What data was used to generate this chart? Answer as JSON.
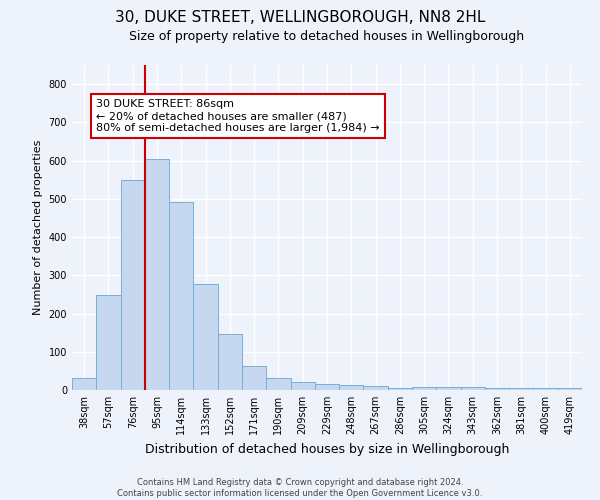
{
  "title": "30, DUKE STREET, WELLINGBOROUGH, NN8 2HL",
  "subtitle": "Size of property relative to detached houses in Wellingborough",
  "xlabel": "Distribution of detached houses by size in Wellingborough",
  "ylabel": "Number of detached properties",
  "categories": [
    "38sqm",
    "57sqm",
    "76sqm",
    "95sqm",
    "114sqm",
    "133sqm",
    "152sqm",
    "171sqm",
    "190sqm",
    "209sqm",
    "229sqm",
    "248sqm",
    "267sqm",
    "286sqm",
    "305sqm",
    "324sqm",
    "343sqm",
    "362sqm",
    "381sqm",
    "400sqm",
    "419sqm"
  ],
  "values": [
    32,
    248,
    549,
    604,
    493,
    277,
    147,
    62,
    31,
    20,
    15,
    12,
    10,
    5,
    8,
    8,
    7,
    5,
    5,
    5,
    6
  ],
  "bar_color": "#c5d8f0",
  "bar_edge_color": "#7aaed6",
  "vline_x_index": 2,
  "vline_color": "#cc0000",
  "annotation_line1": "30 DUKE STREET: 86sqm",
  "annotation_line2": "← 20% of detached houses are smaller (487)",
  "annotation_line3": "80% of semi-detached houses are larger (1,984) →",
  "annotation_box_color": "#cc0000",
  "ylim": [
    0,
    850
  ],
  "yticks": [
    0,
    100,
    200,
    300,
    400,
    500,
    600,
    700,
    800
  ],
  "footer_line1": "Contains HM Land Registry data © Crown copyright and database right 2024.",
  "footer_line2": "Contains public sector information licensed under the Open Government Licence v3.0.",
  "background_color": "#eef2fb",
  "grid_color": "#ffffff",
  "title_fontsize": 11,
  "subtitle_fontsize": 9,
  "ylabel_fontsize": 8,
  "xlabel_fontsize": 9,
  "tick_fontsize": 7,
  "annotation_fontsize": 8,
  "footer_fontsize": 6
}
